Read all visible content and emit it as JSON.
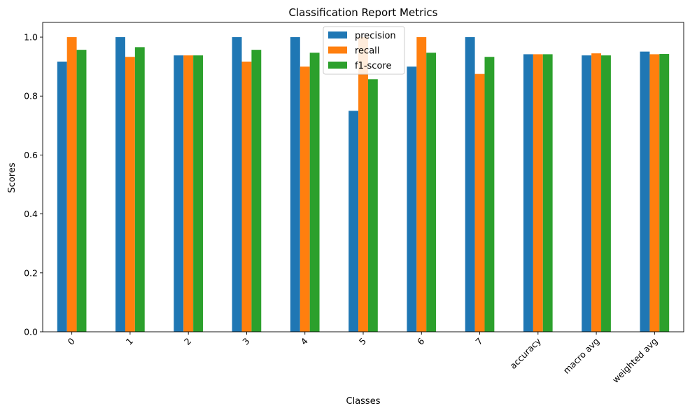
{
  "chart_data": {
    "type": "bar",
    "title": "Classification Report Metrics",
    "xlabel": "Classes",
    "ylabel": "Scores",
    "ylim": [
      0,
      1.05
    ],
    "yticks": [
      0.0,
      0.2,
      0.4,
      0.6,
      0.8,
      1.0
    ],
    "ytick_labels": [
      "0.0",
      "0.2",
      "0.4",
      "0.6",
      "0.8",
      "1.0"
    ],
    "categories": [
      "0",
      "1",
      "2",
      "3",
      "4",
      "5",
      "6",
      "7",
      "accuracy",
      "macro avg",
      "weighted avg"
    ],
    "series": [
      {
        "name": "precision",
        "color": "#1f77b4",
        "values": [
          0.917,
          1.0,
          0.938,
          1.0,
          1.0,
          0.75,
          0.9,
          1.0,
          0.942,
          0.938,
          0.951
        ]
      },
      {
        "name": "recall",
        "color": "#ff7f0e",
        "values": [
          1.0,
          0.933,
          0.938,
          0.917,
          0.9,
          1.0,
          1.0,
          0.875,
          0.942,
          0.945,
          0.942
        ]
      },
      {
        "name": "f1-score",
        "color": "#2ca02c",
        "values": [
          0.957,
          0.966,
          0.938,
          0.957,
          0.947,
          0.857,
          0.947,
          0.933,
          0.942,
          0.938,
          0.943
        ]
      }
    ],
    "legend": {
      "position": "top-center"
    },
    "grid": false,
    "xtick_rotation": 45
  }
}
